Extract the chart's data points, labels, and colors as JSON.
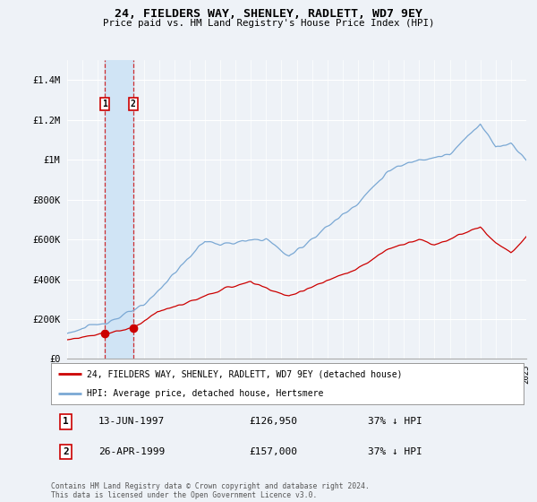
{
  "title": "24, FIELDERS WAY, SHENLEY, RADLETT, WD7 9EY",
  "subtitle": "Price paid vs. HM Land Registry's House Price Index (HPI)",
  "ylim": [
    0,
    1500000
  ],
  "yticks": [
    0,
    200000,
    400000,
    600000,
    800000,
    1000000,
    1200000,
    1400000
  ],
  "ytick_labels": [
    "£0",
    "£200K",
    "£400K",
    "£600K",
    "£800K",
    "£1M",
    "£1.2M",
    "£1.4M"
  ],
  "bg_color": "#eef2f7",
  "grid_color": "#ffffff",
  "red_line_label": "24, FIELDERS WAY, SHENLEY, RADLETT, WD7 9EY (detached house)",
  "blue_line_label": "HPI: Average price, detached house, Hertsmere",
  "transaction1_date": "13-JUN-1997",
  "transaction1_price": "£126,950",
  "transaction1_hpi": "37% ↓ HPI",
  "transaction1_year": 1997.45,
  "transaction1_value": 126950,
  "transaction2_date": "26-APR-1999",
  "transaction2_price": "£157,000",
  "transaction2_hpi": "37% ↓ HPI",
  "transaction2_year": 1999.32,
  "transaction2_value": 157000,
  "footer": "Contains HM Land Registry data © Crown copyright and database right 2024.\nThis data is licensed under the Open Government Licence v3.0.",
  "red_color": "#cc0000",
  "blue_color": "#7aa8d4",
  "span_color": "#d0e4f5"
}
